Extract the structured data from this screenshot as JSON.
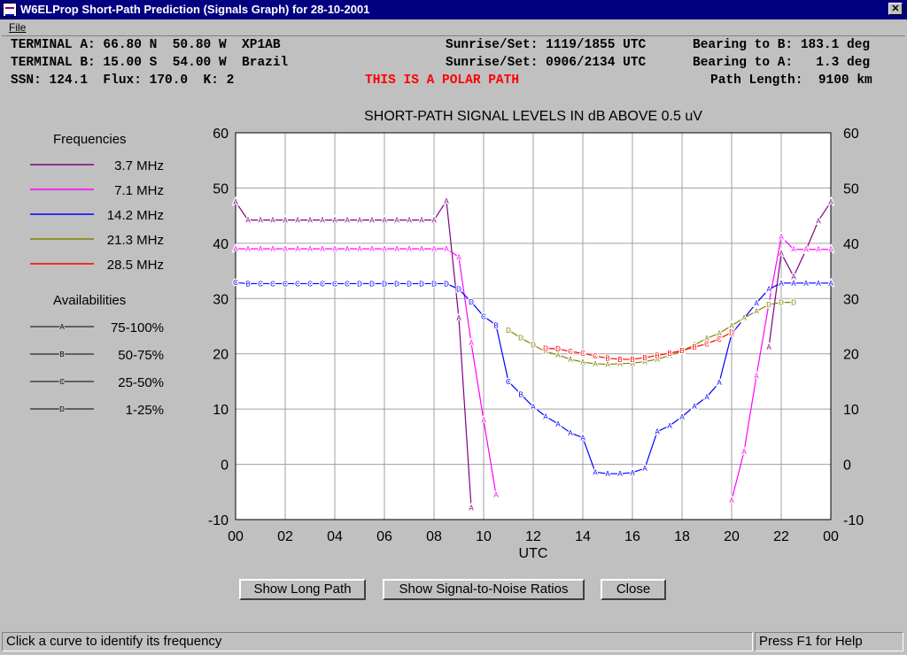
{
  "window": {
    "title": "W6ELProp Short-Path Prediction (Signals Graph) for 28-10-2001"
  },
  "menu": {
    "file": "File"
  },
  "info": {
    "terminal_a": "TERMINAL A: 66.80 N  50.80 W  XP1AB",
    "terminal_b": "TERMINAL B: 15.00 S  54.00 W  Brazil",
    "ssn_line": "SSN: 124.1  Flux: 170.0  K: 2",
    "polar_path": "THIS IS A POLAR PATH",
    "sun_a": "Sunrise/Set: 1119/1855 UTC",
    "sun_b": "Sunrise/Set: 0906/2134 UTC",
    "bearing_b": "Bearing to B: 183.1 deg",
    "bearing_a": "Bearing to A:   1.3 deg",
    "path_length": "Path Length:  9100 km"
  },
  "legend": {
    "freq_title": "Frequencies",
    "avail_title": "Availabilities",
    "frequencies": [
      {
        "label": "3.7 MHz",
        "color": "#800080"
      },
      {
        "label": "7.1 MHz",
        "color": "#ff00ff"
      },
      {
        "label": "14.2 MHz",
        "color": "#0000ff"
      },
      {
        "label": "21.3 MHz",
        "color": "#808000"
      },
      {
        "label": "28.5 MHz",
        "color": "#ff0000"
      }
    ],
    "availabilities": [
      {
        "mark": "A",
        "label": "75-100%"
      },
      {
        "mark": "B",
        "label": "50-75%"
      },
      {
        "mark": "C",
        "label": "25-50%"
      },
      {
        "mark": "D",
        "label": "1-25%"
      }
    ]
  },
  "chart_data": {
    "type": "line",
    "title": "SHORT-PATH SIGNAL LEVELS IN dB ABOVE 0.5 uV",
    "xlabel": "UTC",
    "ylabel": "",
    "xlim": [
      0,
      24
    ],
    "ylim": [
      -10,
      60
    ],
    "x_ticks": [
      "00",
      "02",
      "04",
      "06",
      "08",
      "10",
      "12",
      "14",
      "16",
      "18",
      "20",
      "22",
      "00"
    ],
    "y_ticks": [
      -10,
      0,
      10,
      20,
      30,
      40,
      50,
      60
    ],
    "grid": true,
    "series": [
      {
        "name": "3.7 MHz",
        "color": "#800080",
        "segments": [
          [
            [
              0,
              47.5,
              "A"
            ],
            [
              0.5,
              44.2,
              "A"
            ],
            [
              1,
              44.2,
              "A"
            ],
            [
              1.5,
              44.2,
              "A"
            ],
            [
              2,
              44.2,
              "A"
            ],
            [
              2.5,
              44.2,
              "A"
            ],
            [
              3,
              44.2,
              "A"
            ],
            [
              3.5,
              44.2,
              "A"
            ],
            [
              4,
              44.2,
              "A"
            ],
            [
              4.5,
              44.2,
              "A"
            ],
            [
              5,
              44.2,
              "A"
            ],
            [
              5.5,
              44.2,
              "A"
            ],
            [
              6,
              44.2,
              "A"
            ],
            [
              6.5,
              44.2,
              "A"
            ],
            [
              7,
              44.2,
              "A"
            ],
            [
              7.5,
              44.2,
              "A"
            ],
            [
              8,
              44.2,
              "A"
            ],
            [
              8.5,
              47.7,
              "A"
            ],
            [
              9,
              26.5,
              "A"
            ],
            [
              9.5,
              -7.8,
              "A"
            ]
          ],
          [
            [
              21.5,
              21.2,
              "A"
            ],
            [
              22,
              38.2,
              "A"
            ],
            [
              22.5,
              34,
              "A"
            ],
            [
              23,
              38.8,
              "A"
            ],
            [
              23.5,
              44.1,
              "A"
            ],
            [
              24,
              47.5,
              "A"
            ]
          ]
        ]
      },
      {
        "name": "7.1 MHz",
        "color": "#ff00ff",
        "segments": [
          [
            [
              0,
              39,
              "A"
            ],
            [
              0.5,
              39,
              "A"
            ],
            [
              1,
              39,
              "A"
            ],
            [
              1.5,
              39,
              "A"
            ],
            [
              2,
              39,
              "A"
            ],
            [
              2.5,
              39,
              "A"
            ],
            [
              3,
              39,
              "A"
            ],
            [
              3.5,
              39,
              "A"
            ],
            [
              4,
              39,
              "A"
            ],
            [
              4.5,
              39,
              "A"
            ],
            [
              5,
              39,
              "A"
            ],
            [
              5.5,
              39,
              "A"
            ],
            [
              6,
              39,
              "A"
            ],
            [
              6.5,
              39,
              "A"
            ],
            [
              7,
              39,
              "A"
            ],
            [
              7.5,
              39,
              "A"
            ],
            [
              8,
              39,
              "A"
            ],
            [
              8.5,
              39,
              "A"
            ],
            [
              9,
              37.5,
              "A"
            ],
            [
              9.5,
              22,
              "A"
            ],
            [
              10,
              8,
              "A"
            ],
            [
              10.5,
              -5.5,
              "A"
            ]
          ],
          [
            [
              20,
              -6.5,
              "A"
            ],
            [
              20.5,
              2.3,
              "A"
            ],
            [
              21,
              16,
              "A"
            ],
            [
              21.5,
              29,
              "A"
            ],
            [
              22,
              41.2,
              "A"
            ],
            [
              22.5,
              38.9,
              "A"
            ],
            [
              23,
              38.9,
              "A"
            ],
            [
              23.5,
              38.9,
              "A"
            ],
            [
              24,
              38.9,
              "A"
            ]
          ]
        ]
      },
      {
        "name": "14.2 MHz",
        "color": "#0000ff",
        "segments": [
          [
            [
              0,
              32.9,
              "C"
            ],
            [
              0.5,
              32.7,
              "B"
            ],
            [
              1,
              32.7,
              "C"
            ],
            [
              1.5,
              32.7,
              "C"
            ],
            [
              2,
              32.7,
              "C"
            ],
            [
              2.5,
              32.7,
              "C"
            ],
            [
              3,
              32.7,
              "C"
            ],
            [
              3.5,
              32.7,
              "C"
            ],
            [
              4,
              32.7,
              "C"
            ],
            [
              4.5,
              32.7,
              "C"
            ],
            [
              5,
              32.7,
              "D"
            ],
            [
              5.5,
              32.7,
              "D"
            ],
            [
              6,
              32.7,
              "D"
            ],
            [
              6.5,
              32.7,
              "D"
            ],
            [
              7,
              32.7,
              "D"
            ],
            [
              7.5,
              32.7,
              "D"
            ],
            [
              8,
              32.7,
              "D"
            ],
            [
              8.5,
              32.7,
              "D"
            ],
            [
              9,
              31.7,
              "D"
            ],
            [
              9.5,
              29.4,
              "D"
            ],
            [
              10,
              26.8,
              "C"
            ],
            [
              10.5,
              25.2,
              "B"
            ],
            [
              11,
              15,
              "C"
            ],
            [
              11.5,
              12.7,
              "B"
            ],
            [
              12,
              10.4,
              "A"
            ],
            [
              12.5,
              8.7,
              "A"
            ],
            [
              13,
              7.3,
              "A"
            ],
            [
              13.5,
              5.7,
              "A"
            ],
            [
              14,
              4.8,
              "A"
            ],
            [
              14.5,
              -1.4,
              "A"
            ],
            [
              15,
              -1.7,
              "A"
            ],
            [
              15.5,
              -1.7,
              "A"
            ],
            [
              16,
              -1.5,
              "A"
            ],
            [
              16.5,
              -0.7,
              "A"
            ],
            [
              17,
              5.9,
              "A"
            ],
            [
              17.5,
              7,
              "A"
            ],
            [
              18,
              8.6,
              "A"
            ],
            [
              18.5,
              10.5,
              "A"
            ],
            [
              19,
              12.2,
              "A"
            ],
            [
              19.5,
              14.8,
              "A"
            ],
            [
              20,
              23.6,
              "A"
            ],
            [
              20.5,
              26.4,
              "A"
            ],
            [
              21,
              29.2,
              "A"
            ],
            [
              21.5,
              31.7,
              "A"
            ],
            [
              22,
              32.8,
              "A"
            ],
            [
              22.5,
              32.8,
              "A"
            ],
            [
              23,
              32.8,
              "A"
            ],
            [
              23.5,
              32.8,
              "A"
            ],
            [
              24,
              32.8,
              "A"
            ]
          ]
        ]
      },
      {
        "name": "21.3 MHz",
        "color": "#808000",
        "segments": [
          [
            [
              11,
              24.3,
              "D"
            ],
            [
              11.5,
              22.9,
              "D"
            ],
            [
              12,
              21.6,
              "D"
            ],
            [
              12.5,
              20.4,
              "A"
            ],
            [
              13,
              19.8,
              "A"
            ],
            [
              13.5,
              19,
              "A"
            ],
            [
              14,
              18.5,
              "A"
            ],
            [
              14.5,
              18.2,
              "A"
            ],
            [
              15,
              18.1,
              "A"
            ],
            [
              15.5,
              18.2,
              "A"
            ],
            [
              16,
              18.3,
              "A"
            ],
            [
              16.5,
              18.6,
              "A"
            ],
            [
              17,
              19,
              "A"
            ],
            [
              17.5,
              19.7,
              "A"
            ],
            [
              18,
              20.5,
              "A"
            ],
            [
              18.5,
              21.6,
              "A"
            ],
            [
              19,
              22.8,
              "A"
            ],
            [
              19.5,
              23.7,
              "A"
            ],
            [
              20,
              25.1,
              "A"
            ],
            [
              20.5,
              26.5,
              "A"
            ],
            [
              21,
              27.7,
              "A"
            ],
            [
              21.5,
              28.9,
              "D"
            ],
            [
              22,
              29.3,
              "D"
            ],
            [
              22.5,
              29.3,
              "D"
            ]
          ]
        ]
      },
      {
        "name": "28.5 MHz",
        "color": "#ff0000",
        "segments": [
          [
            [
              12.5,
              21,
              "D"
            ],
            [
              13,
              20.9,
              "D"
            ],
            [
              13.5,
              20.4,
              "C"
            ],
            [
              14,
              20.1,
              "C"
            ],
            [
              14.5,
              19.6,
              "C"
            ],
            [
              15,
              19.2,
              "B"
            ],
            [
              15.5,
              19,
              "B"
            ],
            [
              16,
              19,
              "B"
            ],
            [
              16.5,
              19.3,
              "B"
            ],
            [
              17,
              19.7,
              "B"
            ],
            [
              17.5,
              20.1,
              "B"
            ],
            [
              18,
              20.6,
              "B"
            ],
            [
              18.5,
              21.2,
              "B"
            ],
            [
              19,
              21.8,
              "C"
            ],
            [
              19.5,
              22.7,
              "C"
            ],
            [
              20,
              23.9,
              "D"
            ]
          ]
        ]
      }
    ]
  },
  "buttons": {
    "long_path": "Show Long Path",
    "snr": "Show Signal-to-Noise Ratios",
    "close": "Close"
  },
  "status": {
    "left": "Click a curve to identify its frequency",
    "right": "Press F1 for Help"
  }
}
